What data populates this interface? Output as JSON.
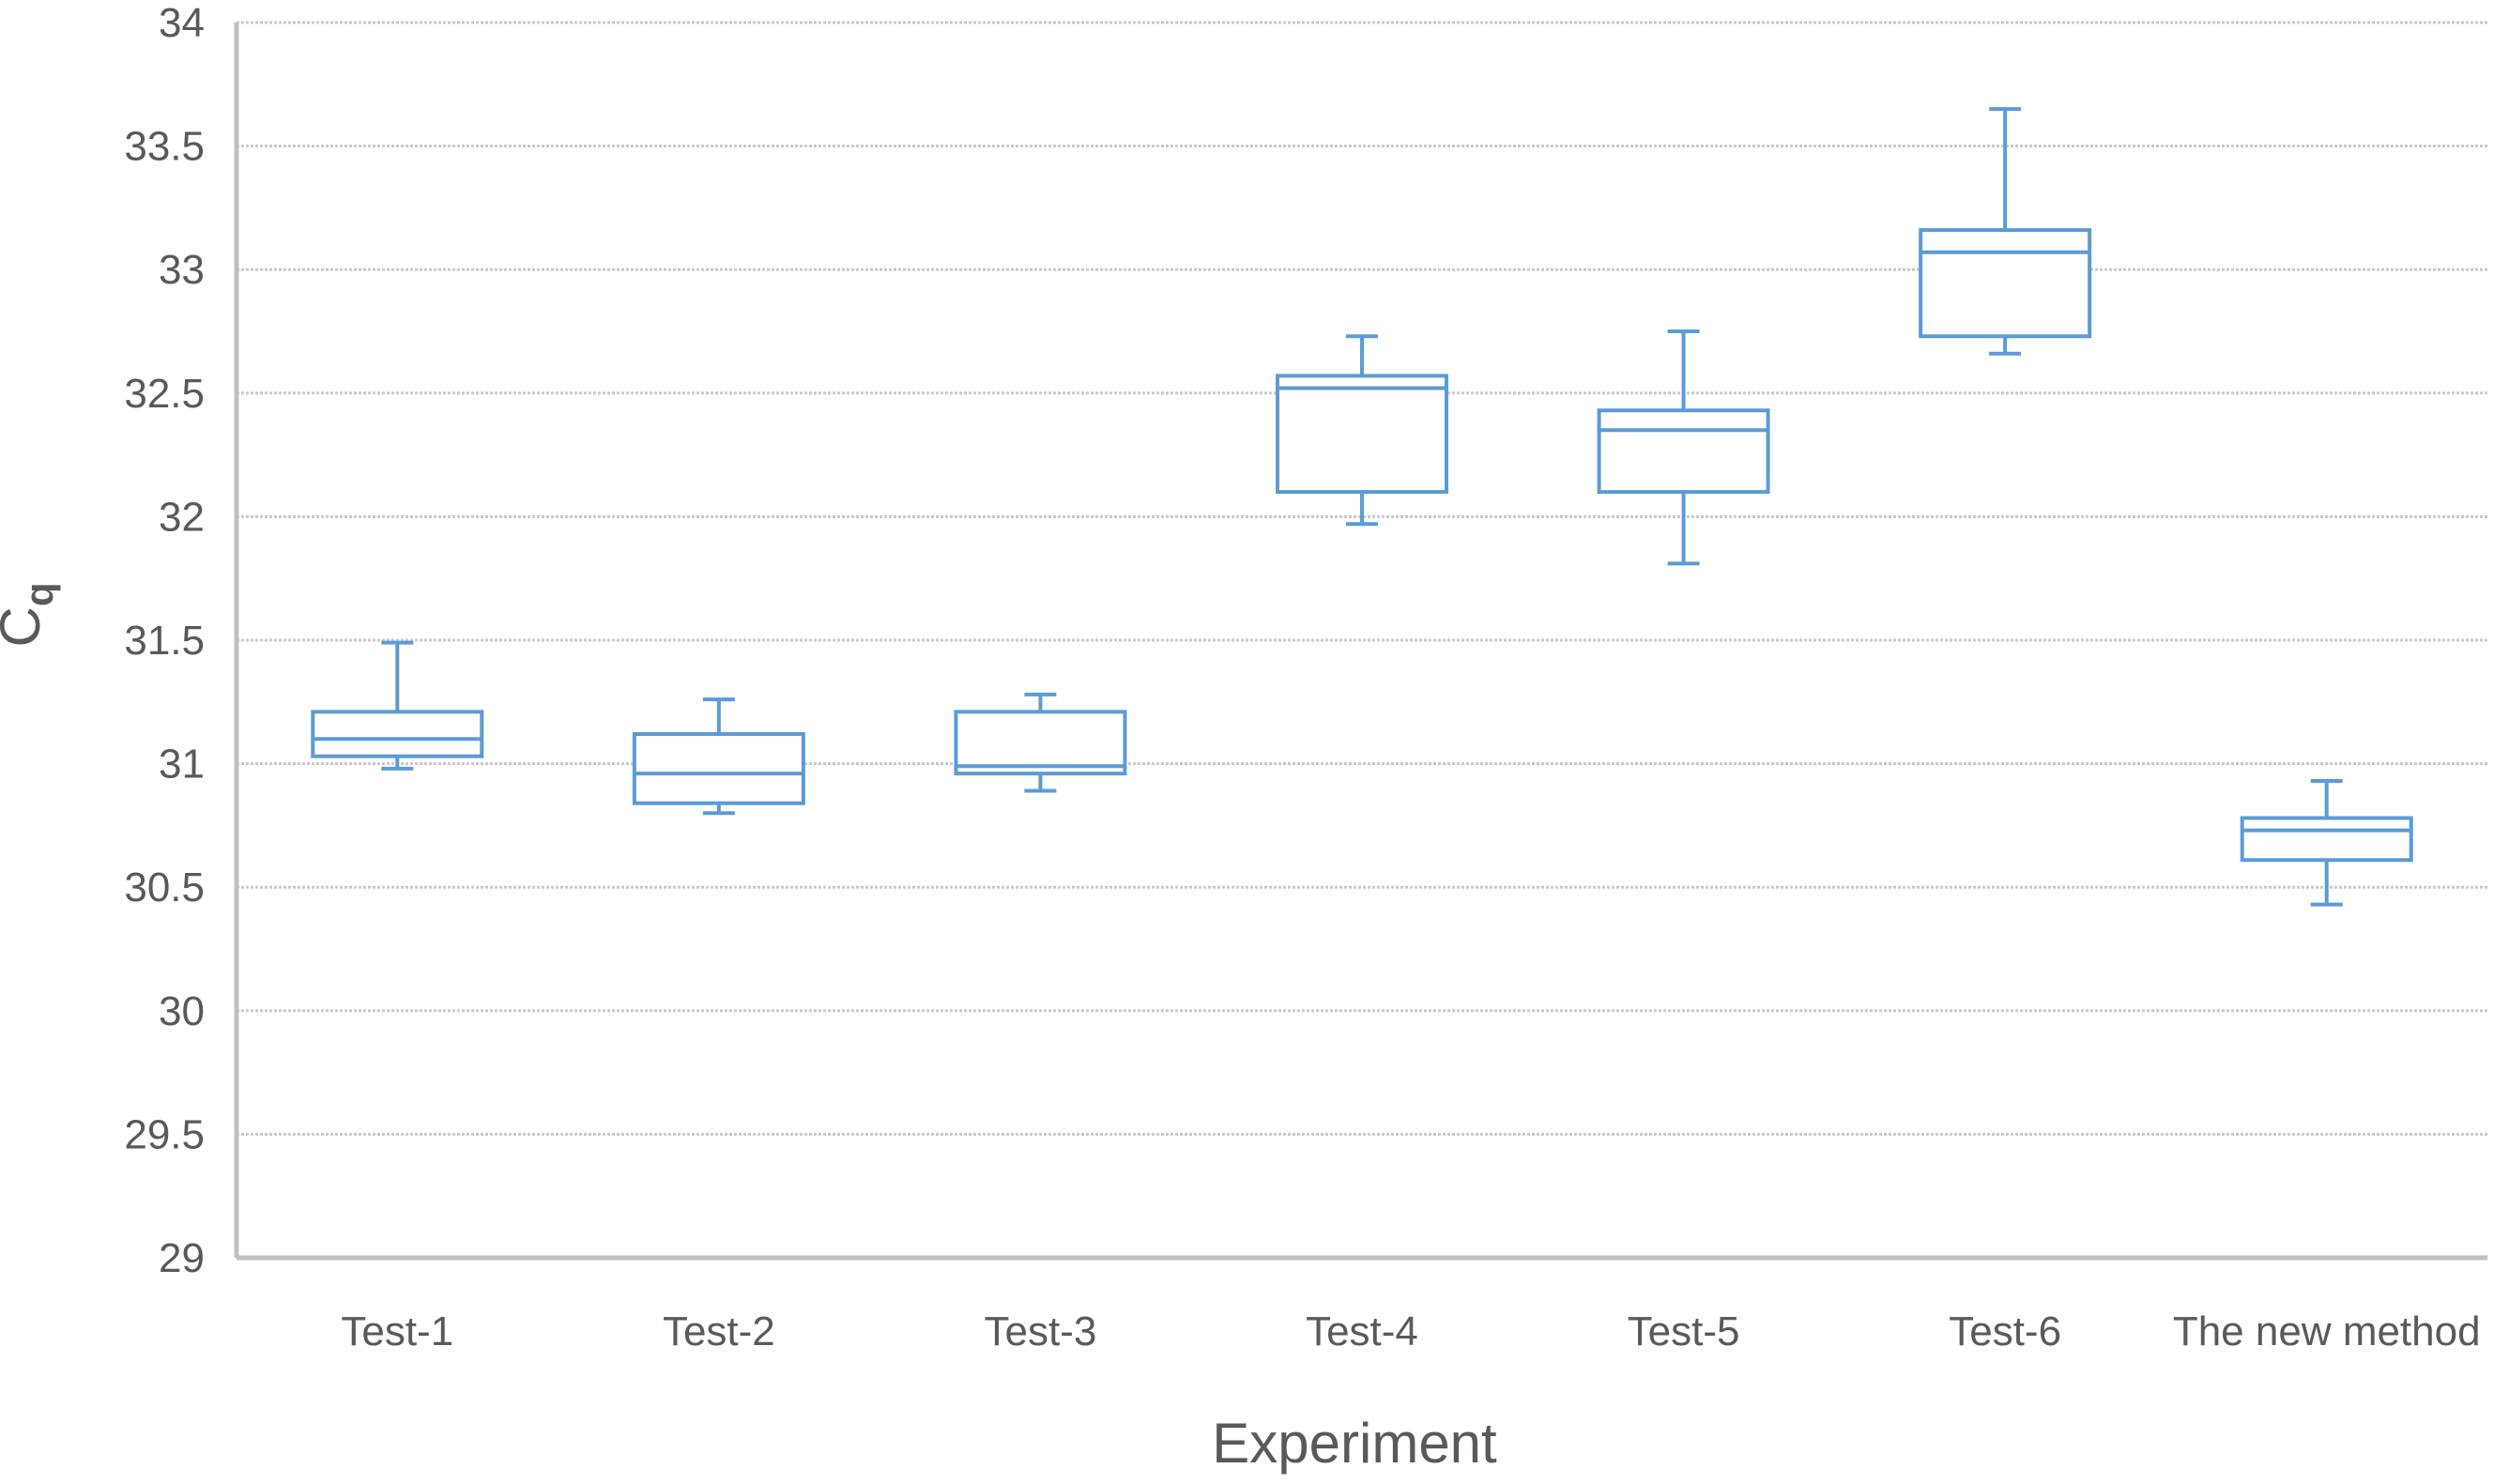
{
  "chart_data": {
    "type": "box",
    "xlabel": "Experiment",
    "ylabel": "C",
    "ylabel_sub": "q",
    "ylim": [
      29,
      34
    ],
    "yticks": [
      "29",
      "29.5",
      "30",
      "30.5",
      "31",
      "31.5",
      "32",
      "32.5",
      "33",
      "33.5",
      "34"
    ],
    "grid": "horizontal",
    "color": "#5b9bd5",
    "categories": [
      "Test-1",
      "Test-2",
      "Test-3",
      "Test-4",
      "Test-5",
      "Test-6",
      "The new method"
    ],
    "boxes": [
      {
        "min": 30.98,
        "q1": 31.03,
        "median": 31.1,
        "q3": 31.21,
        "max": 31.49
      },
      {
        "min": 30.8,
        "q1": 30.84,
        "median": 30.96,
        "q3": 31.12,
        "max": 31.26
      },
      {
        "min": 30.89,
        "q1": 30.96,
        "median": 30.99,
        "q3": 31.21,
        "max": 31.28
      },
      {
        "min": 31.97,
        "q1": 32.1,
        "median": 32.52,
        "q3": 32.57,
        "max": 32.73
      },
      {
        "min": 31.81,
        "q1": 32.1,
        "median": 32.35,
        "q3": 32.43,
        "max": 32.75
      },
      {
        "min": 32.66,
        "q1": 32.73,
        "median": 33.07,
        "q3": 33.16,
        "max": 33.65
      },
      {
        "min": 30.43,
        "q1": 30.61,
        "median": 30.73,
        "q3": 30.78,
        "max": 30.93
      }
    ]
  }
}
